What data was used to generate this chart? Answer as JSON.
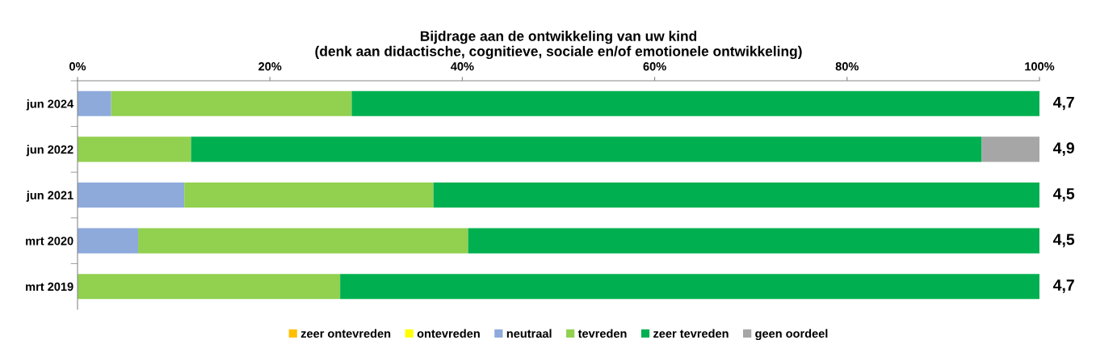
{
  "chart_data": {
    "type": "bar",
    "orientation": "horizontal",
    "stacked": true,
    "title": "Bijdrage aan de ontwikkeling van uw kind\n(denk aan didactische, cognitieve, sociale en/of emotionele ontwikkeling)",
    "categories": [
      "jun 2024",
      "jun 2022",
      "jun 2021",
      "mrt 2020",
      "mrt 2019"
    ],
    "series": [
      {
        "name": "zeer ontevreden",
        "color": "#ffc000",
        "values": [
          0,
          0,
          0,
          0,
          0
        ]
      },
      {
        "name": "ontevreden",
        "color": "#ffff00",
        "values": [
          0,
          0,
          0,
          0,
          0
        ]
      },
      {
        "name": "neutraal",
        "color": "#8eaadb",
        "values": [
          3.5,
          0,
          11.1,
          6.3,
          0
        ]
      },
      {
        "name": "tevreden",
        "color": "#92d050",
        "values": [
          25.0,
          11.8,
          25.9,
          34.3,
          27.3
        ]
      },
      {
        "name": "zeer tevreden",
        "color": "#00b050",
        "values": [
          71.5,
          82.2,
          63.0,
          59.4,
          72.7
        ]
      },
      {
        "name": "geen oordeel",
        "color": "#a6a6a6",
        "values": [
          0,
          6.0,
          0,
          0,
          0
        ]
      }
    ],
    "xlim": [
      0,
      100
    ],
    "xticks": [
      {
        "value": 0,
        "label": "0%"
      },
      {
        "value": 20,
        "label": "20%"
      },
      {
        "value": 40,
        "label": "40%"
      },
      {
        "value": 60,
        "label": "60%"
      },
      {
        "value": 80,
        "label": "80%"
      },
      {
        "value": 100,
        "label": "100%"
      }
    ],
    "annotations": [
      "4,7",
      "4,9",
      "4,5",
      "4,5",
      "4,7"
    ],
    "legend": "bottom",
    "grid": false
  }
}
